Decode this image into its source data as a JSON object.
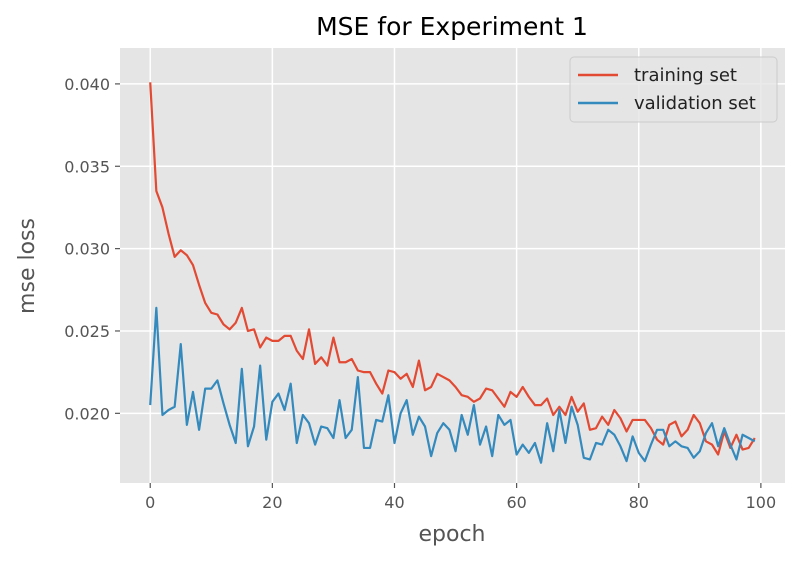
{
  "chart_data": {
    "type": "line",
    "title": "MSE for Experiment 1",
    "xlabel": "epoch",
    "ylabel": "mse loss",
    "xlim": [
      -4.95,
      103.95
    ],
    "ylim": [
      0.01577,
      0.04218
    ],
    "xticks": [
      0,
      20,
      40,
      60,
      80,
      100
    ],
    "xtick_labels": [
      "0",
      "20",
      "40",
      "60",
      "80",
      "100"
    ],
    "yticks": [
      0.02,
      0.025,
      0.03,
      0.035,
      0.04
    ],
    "ytick_labels": [
      "0.020",
      "0.025",
      "0.030",
      "0.035",
      "0.040"
    ],
    "grid": true,
    "legend_position": "top-right",
    "background_color": "#e5e5e5",
    "grid_color": "#ffffff",
    "series": [
      {
        "name": "training set",
        "color": "#e24a33",
        "values": [
          0.0401,
          0.0335,
          0.0325,
          0.0309,
          0.0295,
          0.0299,
          0.0296,
          0.029,
          0.0278,
          0.0267,
          0.0261,
          0.026,
          0.0254,
          0.0251,
          0.0255,
          0.0264,
          0.025,
          0.0251,
          0.024,
          0.0246,
          0.0244,
          0.0244,
          0.0247,
          0.0247,
          0.0238,
          0.0233,
          0.0251,
          0.023,
          0.0234,
          0.0229,
          0.0246,
          0.0231,
          0.0231,
          0.0233,
          0.0226,
          0.0225,
          0.0225,
          0.0218,
          0.0212,
          0.0226,
          0.0225,
          0.0221,
          0.0224,
          0.0216,
          0.0232,
          0.0214,
          0.0216,
          0.0224,
          0.0222,
          0.022,
          0.0216,
          0.0211,
          0.021,
          0.0207,
          0.0209,
          0.0215,
          0.0214,
          0.0209,
          0.0204,
          0.0213,
          0.021,
          0.0216,
          0.021,
          0.0205,
          0.0205,
          0.0209,
          0.0199,
          0.0204,
          0.0199,
          0.021,
          0.0201,
          0.0206,
          0.019,
          0.0191,
          0.0198,
          0.0193,
          0.0202,
          0.0197,
          0.0189,
          0.0196,
          0.0196,
          0.0196,
          0.0191,
          0.0184,
          0.0181,
          0.0193,
          0.0195,
          0.0186,
          0.019,
          0.0199,
          0.0194,
          0.0183,
          0.0181,
          0.0175,
          0.0189,
          0.0179,
          0.0187,
          0.0178,
          0.0179,
          0.0185
        ]
      },
      {
        "name": "validation set",
        "color": "#348abd",
        "values": [
          0.0205,
          0.0264,
          0.0199,
          0.0202,
          0.0204,
          0.0242,
          0.0193,
          0.0213,
          0.019,
          0.0215,
          0.0215,
          0.022,
          0.0206,
          0.0193,
          0.0182,
          0.0227,
          0.018,
          0.0192,
          0.0229,
          0.0184,
          0.0207,
          0.0212,
          0.0202,
          0.0218,
          0.0182,
          0.0199,
          0.0194,
          0.0181,
          0.0192,
          0.0191,
          0.0185,
          0.0208,
          0.0185,
          0.019,
          0.0222,
          0.0179,
          0.0179,
          0.0196,
          0.0195,
          0.0211,
          0.0182,
          0.02,
          0.0208,
          0.0187,
          0.0198,
          0.0192,
          0.0174,
          0.0188,
          0.0194,
          0.019,
          0.0177,
          0.0199,
          0.0187,
          0.0205,
          0.0181,
          0.0192,
          0.0174,
          0.0199,
          0.0193,
          0.0196,
          0.0175,
          0.0181,
          0.0176,
          0.0182,
          0.017,
          0.0194,
          0.0177,
          0.0202,
          0.0182,
          0.0204,
          0.0193,
          0.0173,
          0.0172,
          0.0182,
          0.0181,
          0.019,
          0.0187,
          0.018,
          0.0171,
          0.0186,
          0.0176,
          0.0171,
          0.0181,
          0.019,
          0.019,
          0.018,
          0.0183,
          0.018,
          0.0179,
          0.0173,
          0.0177,
          0.0188,
          0.0194,
          0.018,
          0.0191,
          0.0181,
          0.0172,
          0.0187,
          0.0185,
          0.0183
        ]
      }
    ]
  }
}
